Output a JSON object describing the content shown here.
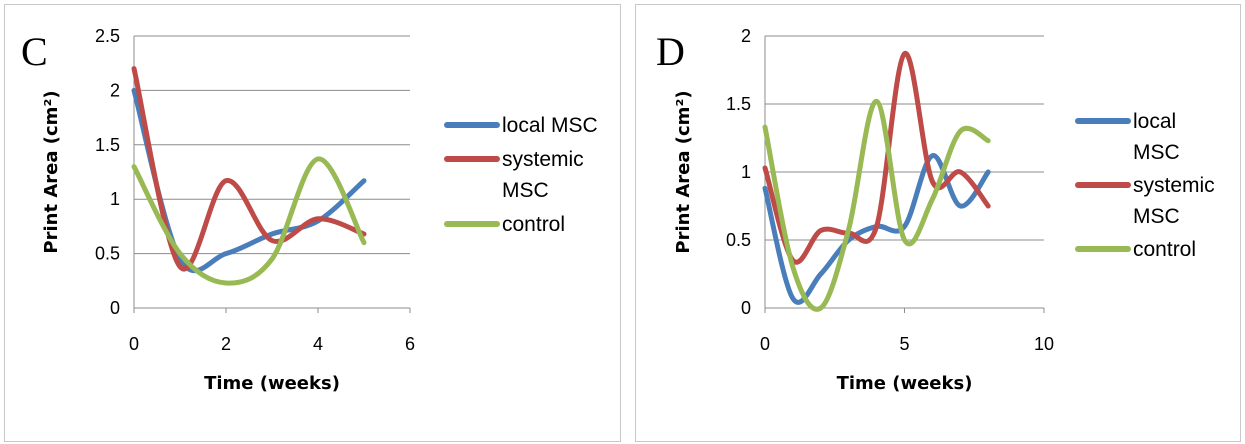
{
  "chart_data": [
    {
      "type": "line",
      "panel_label": "C",
      "xlabel": "Time (weeks)",
      "ylabel": "Print Area (cm²)",
      "xlim": [
        0,
        6
      ],
      "ylim": [
        0,
        2.5
      ],
      "x_ticks": [
        "0",
        "2",
        "4",
        "6"
      ],
      "y_ticks": [
        "0",
        "0.5",
        "1",
        "1.5",
        "2",
        "2.5"
      ],
      "grid": "horizontal",
      "legend_position": "right",
      "series": [
        {
          "name": "local MSC",
          "legend_lines": [
            "local MSC"
          ],
          "color": "#4a7ebb",
          "x": [
            0,
            1,
            2,
            3,
            4,
            5
          ],
          "y": [
            2.0,
            0.45,
            0.5,
            0.68,
            0.8,
            1.17
          ]
        },
        {
          "name": "systemic MSC",
          "legend_lines": [
            "systemic",
            "MSC"
          ],
          "color": "#be4b48",
          "x": [
            0,
            1,
            2,
            3,
            4,
            5
          ],
          "y": [
            2.2,
            0.38,
            1.17,
            0.62,
            0.82,
            0.68
          ]
        },
        {
          "name": "control",
          "legend_lines": [
            "control"
          ],
          "color": "#98b954",
          "x": [
            0,
            1,
            2,
            3,
            4,
            5
          ],
          "y": [
            1.3,
            0.5,
            0.23,
            0.45,
            1.37,
            0.6
          ]
        }
      ]
    },
    {
      "type": "line",
      "panel_label": "D",
      "xlabel": "Time (weeks)",
      "ylabel": "Print Area (cm²)",
      "xlim": [
        0,
        10
      ],
      "ylim": [
        0,
        2
      ],
      "x_ticks": [
        "0",
        "5",
        "10"
      ],
      "y_ticks": [
        "0",
        "0.5",
        "1",
        "1.5",
        "2"
      ],
      "grid": "horizontal",
      "legend_position": "right",
      "series": [
        {
          "name": "local MSC",
          "legend_lines": [
            "local",
            "MSC"
          ],
          "color": "#4a7ebb",
          "x": [
            0,
            1,
            2,
            3,
            4,
            5,
            6,
            7,
            8
          ],
          "y": [
            0.88,
            0.07,
            0.25,
            0.5,
            0.6,
            0.6,
            1.12,
            0.75,
            1.0
          ]
        },
        {
          "name": "systemic MSC",
          "legend_lines": [
            "systemic",
            "MSC"
          ],
          "color": "#be4b48",
          "x": [
            0,
            1,
            2,
            3,
            4,
            5,
            6,
            7,
            8
          ],
          "y": [
            1.03,
            0.35,
            0.57,
            0.55,
            0.6,
            1.87,
            0.93,
            1.0,
            0.75
          ]
        },
        {
          "name": "control",
          "legend_lines": [
            "control"
          ],
          "color": "#98b954",
          "x": [
            0,
            1,
            2,
            3,
            4,
            5,
            6,
            7,
            8
          ],
          "y": [
            1.33,
            0.3,
            0.0,
            0.58,
            1.52,
            0.5,
            0.8,
            1.3,
            1.23
          ]
        }
      ]
    }
  ]
}
